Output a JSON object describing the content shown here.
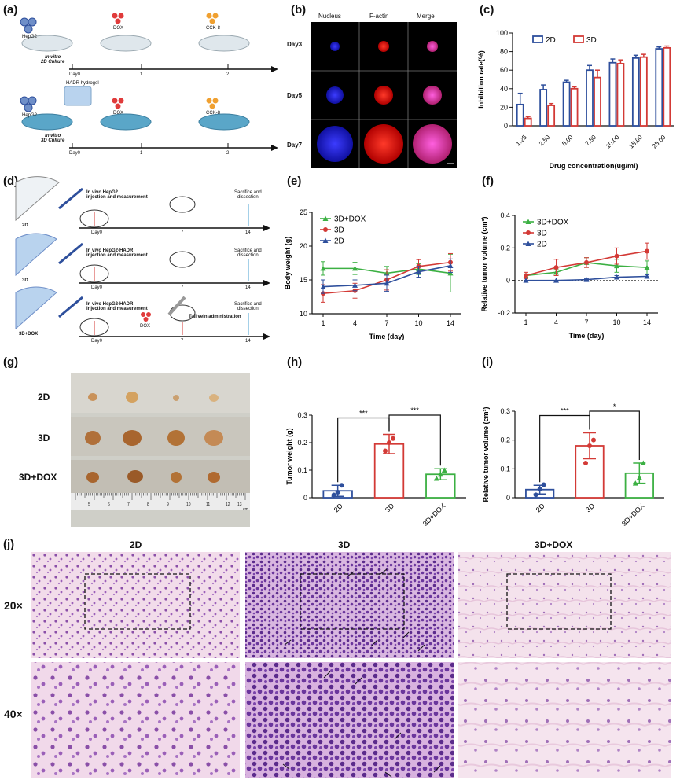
{
  "panels": {
    "a": {
      "label": "(a)",
      "rows": [
        {
          "title": "In vitro\n2D Culture",
          "cells": "HepG2",
          "drug": "DOX",
          "assay": "CCK-8",
          "ticks": [
            "Day0",
            "1",
            "2"
          ]
        },
        {
          "title": "In vitro\n3D Culture",
          "cells": "HepG2",
          "hydrogel": "HADR hydrogel",
          "drug": "DOX",
          "assay": "CCK-8",
          "ticks": [
            "Day0",
            "1",
            "2"
          ]
        }
      ]
    },
    "b": {
      "label": "(b)",
      "columns": [
        "Nucleus",
        "F-actin",
        "Merge"
      ],
      "rows": [
        "Day3",
        "Day5",
        "Day7"
      ]
    },
    "c": {
      "label": "(c)",
      "chart_data": {
        "type": "bar",
        "categories": [
          "1.25",
          "2.50",
          "5.00",
          "7.50",
          "10.00",
          "15.00",
          "25.00"
        ],
        "xlabel": "Drug concentration(ug/ml)",
        "ylabel": "Inhibition rate(%)",
        "ylim": [
          0,
          100
        ],
        "yticks": [
          0,
          20,
          40,
          60,
          80,
          100
        ],
        "legend_position": "top-left",
        "series": [
          {
            "name": "2D",
            "color": "#2e4f9c",
            "values": [
              23,
              39,
              47,
              60,
              68,
              73,
              83
            ],
            "err": [
              12,
              5,
              2,
              5,
              4,
              3,
              2
            ]
          },
          {
            "name": "3D",
            "color": "#d33a36",
            "values": [
              8,
              22,
              40,
              52,
              67,
              74,
              84
            ],
            "err": [
              2,
              2,
              2,
              8,
              4,
              3,
              2
            ]
          }
        ]
      }
    },
    "d": {
      "label": "(d)",
      "rows": [
        {
          "group": "2D",
          "step1": "In vivo HepG2\ninjection and measurement",
          "ticks": [
            "Day0",
            "7",
            "14"
          ],
          "end": "Sacrifice and\ndissection"
        },
        {
          "group": "3D",
          "step1": "In vivo HepG2-HADR\ninjection and measurement",
          "ticks": [
            "Day0",
            "7",
            "14"
          ],
          "end": "Sacrifice and\ndissection"
        },
        {
          "group": "3D+DOX",
          "step1": "In vivo HepG2-HADR\ninjection and measurement",
          "drug": "DOX",
          "step2": "Tail vein administration",
          "ticks": [
            "Day0",
            "7",
            "14"
          ],
          "end": "Sacrifice and\ndissection"
        }
      ]
    },
    "e": {
      "label": "(e)",
      "chart_data": {
        "type": "line",
        "x": [
          1,
          4,
          7,
          10,
          14
        ],
        "xlabel": "Time (day)",
        "ylabel": "Body weight (g)",
        "ylim": [
          10,
          25
        ],
        "yticks": [
          10,
          15,
          20,
          25
        ],
        "legend_position": "top-left",
        "series": [
          {
            "name": "3D+DOX",
            "color": "#3cb043",
            "marker": "triangle",
            "values": [
              16.7,
              16.7,
              16.0,
              16.6,
              16.0
            ],
            "err": [
              1.0,
              0.9,
              1.0,
              0.8,
              2.8
            ]
          },
          {
            "name": "3D",
            "color": "#d33a36",
            "marker": "circle",
            "values": [
              13.0,
              13.4,
              15.0,
              17.0,
              17.6
            ],
            "err": [
              1.3,
              1.1,
              1.5,
              1.0,
              1.3
            ]
          },
          {
            "name": "2D",
            "color": "#2e4f9c",
            "marker": "triangle",
            "values": [
              14.0,
              14.2,
              14.5,
              16.2,
              17.1
            ],
            "err": [
              1.0,
              0.8,
              1.2,
              0.8,
              1.0
            ]
          }
        ]
      }
    },
    "f": {
      "label": "(f)",
      "chart_data": {
        "type": "line",
        "x": [
          1,
          4,
          7,
          10,
          14
        ],
        "xlabel": "Time (day)",
        "ylabel": "Relative tumor volume (cm³)",
        "ylim": [
          -0.2,
          0.4
        ],
        "yticks": [
          -0.2,
          0.0,
          0.2,
          0.4
        ],
        "legend_position": "top-left",
        "series": [
          {
            "name": "3D+DOX",
            "color": "#3cb043",
            "marker": "triangle",
            "values": [
              0.03,
              0.05,
              0.11,
              0.09,
              0.08
            ],
            "err": [
              0.01,
              0.02,
              0.03,
              0.04,
              0.04
            ]
          },
          {
            "name": "3D",
            "color": "#d33a36",
            "marker": "circle",
            "values": [
              0.03,
              0.08,
              0.11,
              0.15,
              0.18
            ],
            "err": [
              0.02,
              0.05,
              0.03,
              0.05,
              0.05
            ]
          },
          {
            "name": "2D",
            "color": "#2e4f9c",
            "marker": "triangle",
            "values": [
              0.0,
              0.0,
              0.005,
              0.02,
              0.025
            ],
            "err": [
              0.0,
              0.0,
              0.005,
              0.01,
              0.01
            ]
          }
        ]
      }
    },
    "g": {
      "label": "(g)",
      "rows": [
        "2D",
        "3D",
        "3D+DOX"
      ],
      "ruler": [
        "5",
        "6",
        "7",
        "8",
        "9",
        "10",
        "11",
        "12",
        "13"
      ],
      "ruler_unit": "cm"
    },
    "h": {
      "label": "(h)",
      "chart_data": {
        "type": "bar",
        "categories": [
          "2D",
          "3D",
          "3D+DOX"
        ],
        "values": [
          0.025,
          0.195,
          0.085
        ],
        "err": [
          0.02,
          0.035,
          0.02
        ],
        "colors": [
          "#2e4f9c",
          "#d33a36",
          "#3cb043"
        ],
        "ylabel": "Tumor weight (g)",
        "ylim": [
          0,
          0.3
        ],
        "yticks": [
          0.0,
          0.1,
          0.2,
          0.3
        ],
        "points": [
          [
            0.01,
            0.02,
            0.045
          ],
          [
            0.17,
            0.2,
            0.215
          ],
          [
            0.07,
            0.085,
            0.1
          ]
        ],
        "significance": [
          {
            "from": 0,
            "to": 1,
            "label": "***"
          },
          {
            "from": 1,
            "to": 2,
            "label": "***"
          }
        ]
      }
    },
    "i": {
      "label": "(i)",
      "chart_data": {
        "type": "bar",
        "categories": [
          "2D",
          "3D",
          "3D+DOX"
        ],
        "values": [
          0.028,
          0.18,
          0.085
        ],
        "err": [
          0.015,
          0.045,
          0.035
        ],
        "colors": [
          "#2e4f9c",
          "#d33a36",
          "#3cb043"
        ],
        "ylabel": "Relative tumor volume (cm³)",
        "ylim": [
          0,
          0.3
        ],
        "yticks": [
          0.0,
          0.1,
          0.2,
          0.3
        ],
        "points": [
          [
            0.01,
            0.03,
            0.045
          ],
          [
            0.12,
            0.18,
            0.2
          ],
          [
            0.05,
            0.07,
            0.12
          ]
        ],
        "significance": [
          {
            "from": 0,
            "to": 1,
            "label": "***"
          },
          {
            "from": 1,
            "to": 2,
            "label": "*"
          }
        ]
      }
    },
    "j": {
      "label": "(j)",
      "columns": [
        "2D",
        "3D",
        "3D+DOX"
      ],
      "rows": [
        "20×",
        "40×"
      ]
    }
  }
}
